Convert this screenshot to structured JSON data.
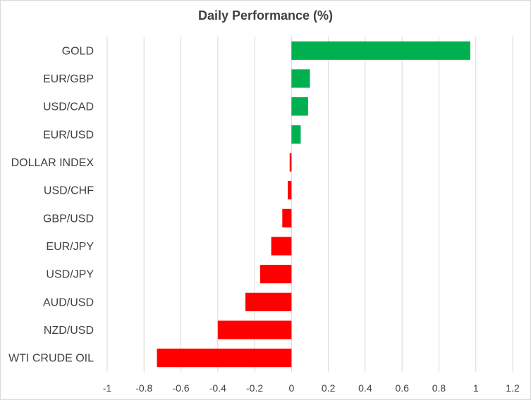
{
  "chart_data": {
    "type": "bar",
    "orientation": "horizontal",
    "title": "Daily Performance (%)",
    "xlabel": "",
    "ylabel": "",
    "xlim": [
      -1,
      1.2
    ],
    "xticks": [
      "-1",
      "-0.8",
      "-0.6",
      "-0.4",
      "-0.2",
      "0",
      "0.2",
      "0.4",
      "0.6",
      "0.8",
      "1",
      "1.2"
    ],
    "grid": "vertical",
    "legend": "none",
    "categories": [
      "GOLD",
      "EUR/GBP",
      "USD/CAD",
      "EUR/USD",
      "DOLLAR INDEX",
      "USD/CHF",
      "GBP/USD",
      "EUR/JPY",
      "USD/JPY",
      "AUD/USD",
      "NZD/USD",
      "WTI CRUDE OIL"
    ],
    "values": [
      0.97,
      0.1,
      0.09,
      0.05,
      -0.01,
      -0.02,
      -0.05,
      -0.11,
      -0.17,
      -0.25,
      -0.4,
      -0.73
    ],
    "colors": {
      "positive": "#00b050",
      "negative": "#ff0000",
      "grid": "#d9d9d9",
      "text": "#404040"
    }
  }
}
